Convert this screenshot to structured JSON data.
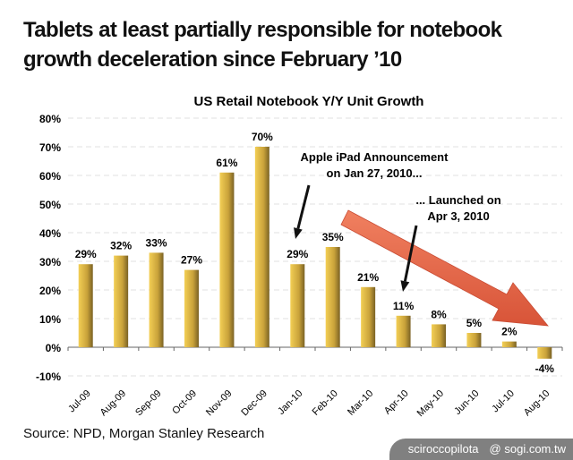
{
  "title_lines": [
    "Tablets at least partially responsible for notebook",
    "growth deceleration since February ’10"
  ],
  "source": "Source: NPD, Morgan Stanley Research",
  "watermark": {
    "user": "sciroccopilota",
    "site": "@ sogi.com.tw"
  },
  "chart_data": {
    "type": "bar",
    "title": "US Retail Notebook Y/Y Unit Growth",
    "xlabel": "",
    "ylabel": "",
    "categories": [
      "Jul-09",
      "Aug-09",
      "Sep-09",
      "Oct-09",
      "Nov-09",
      "Dec-09",
      "Jan-10",
      "Feb-10",
      "Mar-10",
      "Apr-10",
      "May-10",
      "Jun-10",
      "Jul-10",
      "Aug-10"
    ],
    "values": [
      29,
      32,
      33,
      27,
      61,
      70,
      29,
      35,
      21,
      11,
      8,
      5,
      2,
      -4
    ],
    "data_labels": [
      "29%",
      "32%",
      "33%",
      "27%",
      "61%",
      "70%",
      "29%",
      "35%",
      "21%",
      "11%",
      "8%",
      "5%",
      "2%",
      "-4%"
    ],
    "ylim": [
      -10,
      80
    ],
    "yticks": [
      -10,
      0,
      10,
      20,
      30,
      40,
      50,
      60,
      70,
      80
    ],
    "ytick_labels": [
      "-10%",
      "0%",
      "10%",
      "20%",
      "30%",
      "40%",
      "50%",
      "60%",
      "70%",
      "80%"
    ],
    "grid": true,
    "bar_color": "#d9b43c",
    "annotations": [
      {
        "lines": [
          "Apple iPad Announcement",
          "on Jan 27, 2010..."
        ],
        "points_to": "Jan-10"
      },
      {
        "lines": [
          "... Launched on",
          "Apr 3, 2010"
        ],
        "points_to": "Apr-10"
      }
    ],
    "trend_arrow": {
      "color": "#e8674a",
      "from": "Feb-10",
      "to": "Aug-10"
    }
  }
}
